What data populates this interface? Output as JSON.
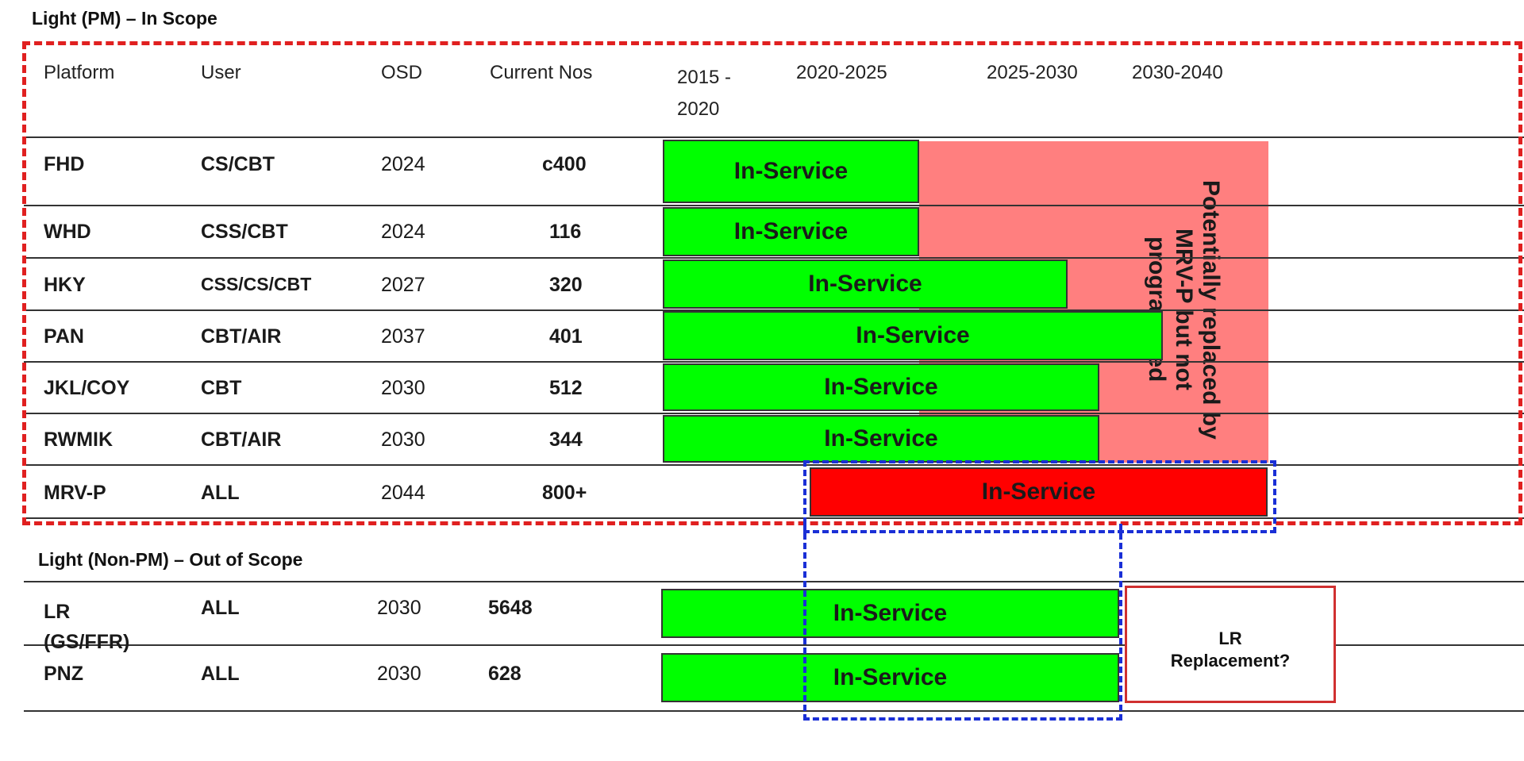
{
  "section_in_scope": "Light (PM) – In Scope",
  "section_out_scope": "Light (Non-PM) – Out of Scope",
  "headers": {
    "platform": "Platform",
    "user": "User",
    "osd": "OSD",
    "current_nos": "Current Nos",
    "p1": "2015 -\n2020",
    "p2": "2020-2025",
    "p3": "2025-2030",
    "p4": "2030-2040"
  },
  "rows_in": [
    {
      "platform": "FHD",
      "user": "CS/CBT",
      "osd": "2024",
      "nos": "c400",
      "bar": "In-Service"
    },
    {
      "platform": "WHD",
      "user": "CSS/CBT",
      "osd": "2024",
      "nos": "116",
      "bar": "In-Service"
    },
    {
      "platform": "HKY",
      "user": "CSS/CS/CBT",
      "osd": "2027",
      "nos": "320",
      "bar": "In-Service"
    },
    {
      "platform": "PAN",
      "user": "CBT/AIR",
      "osd": "2037",
      "nos": "401",
      "bar": "In-Service"
    },
    {
      "platform": "JKL/COY",
      "user": "CBT",
      "osd": "2030",
      "nos": "512",
      "bar": "In-Service"
    },
    {
      "platform": "RWMIK",
      "user": "CBT/AIR",
      "osd": "2030",
      "nos": "344",
      "bar": "In-Service"
    },
    {
      "platform": "MRV-P",
      "user": "ALL",
      "osd": "2044",
      "nos": "800+",
      "bar": "In-Service"
    }
  ],
  "rows_out": [
    {
      "platform": "LR\n(GS/FFR)",
      "user": "ALL",
      "osd": "2030",
      "nos": "5648",
      "bar": "In-Service"
    },
    {
      "platform": "PNZ",
      "user": "ALL",
      "osd": "2030",
      "nos": "628",
      "bar": "In-Service"
    }
  ],
  "replacement_note": "Potentially replaced by\nMRV-P but not\nprogrammed",
  "lr_replacement": "LR\nReplacement?",
  "colors": {
    "in_service_green": "#00ff00",
    "mrvp_red": "#ff0000",
    "replacement_pink": "#ff7f7f",
    "scope_dash_red": "#e02020",
    "focus_dash_blue": "#1a2fd6"
  }
}
